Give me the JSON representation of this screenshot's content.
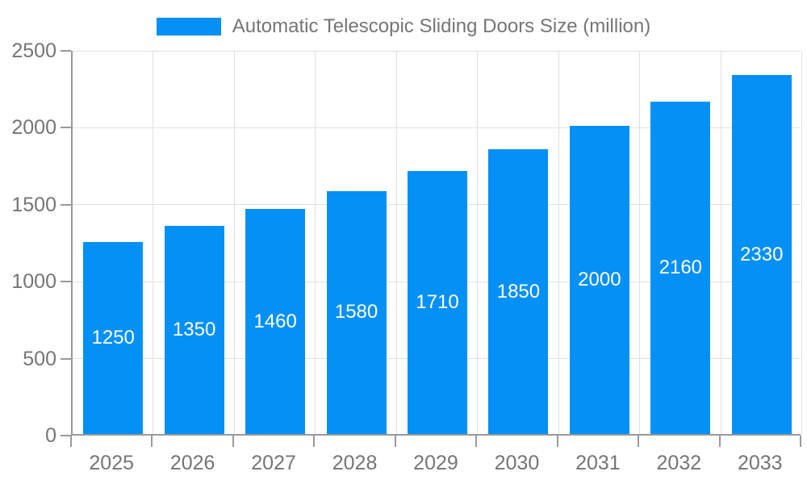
{
  "legend": {
    "label": "Automatic Telescopic Sliding Doors Size (million)"
  },
  "chart_data": {
    "type": "bar",
    "title": "Automatic Telescopic Sliding Doors Size (million)",
    "categories": [
      "2025",
      "2026",
      "2027",
      "2028",
      "2029",
      "2030",
      "2031",
      "2032",
      "2033"
    ],
    "values": [
      1250,
      1350,
      1460,
      1580,
      1710,
      1850,
      2000,
      2160,
      2330
    ],
    "value_labels": [
      "1250",
      "1350",
      "1460",
      "1580",
      "1710",
      "1850",
      "2000",
      "2160",
      "2330"
    ],
    "xlabel": "",
    "ylabel": "",
    "ylim": [
      0,
      2500
    ],
    "yticks": [
      0,
      500,
      1000,
      1500,
      2000,
      2500
    ],
    "ytick_labels": [
      "0",
      "500",
      "1000",
      "1500",
      "2000",
      "2500"
    ],
    "grid": true,
    "legend_position": "top-center",
    "value_labels_position": "inside-center"
  },
  "colors": {
    "bar": "#0590F5",
    "bar_label_text": "#FFFFFF",
    "grid": "#E0E0E0",
    "axis": "#999999",
    "tick_text": "#757575",
    "legend_text": "#757575",
    "background": "#FFFFFF"
  }
}
